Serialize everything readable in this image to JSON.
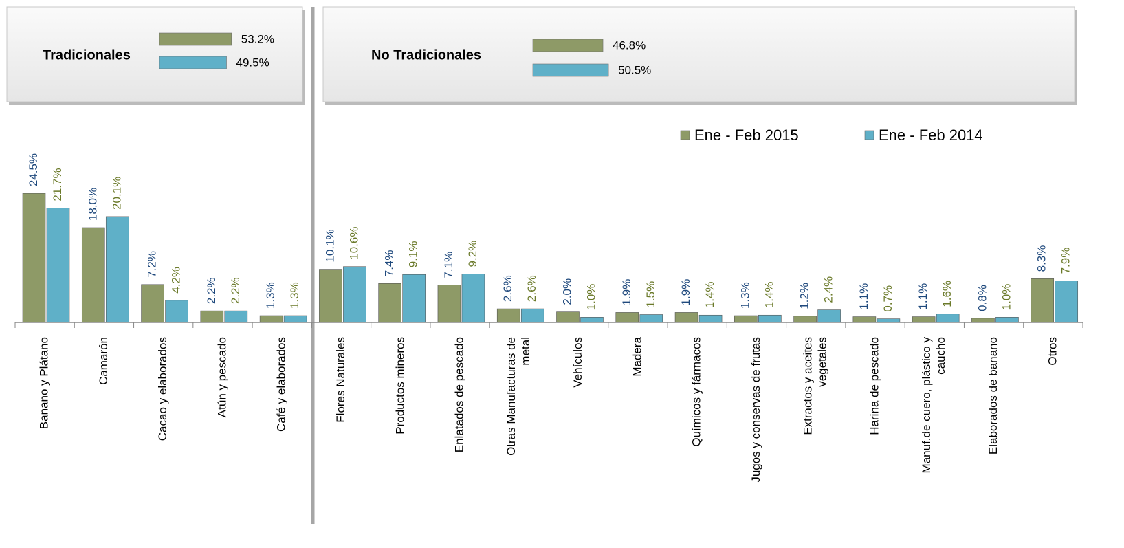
{
  "chart_data": [
    {
      "type": "bar",
      "orientation": "horizontal",
      "title": "Tradicionales",
      "values": [
        53.2,
        49.5
      ],
      "value_labels": [
        "53.2%",
        "49.5%"
      ],
      "colors": [
        "#8e9a67",
        "#5fb0c8"
      ],
      "xlim": [
        0,
        100
      ]
    },
    {
      "type": "bar",
      "orientation": "horizontal",
      "title": "No Tradicionales",
      "values": [
        46.8,
        50.5
      ],
      "value_labels": [
        "46.8%",
        "50.5%"
      ],
      "colors": [
        "#8e9a67",
        "#5fb0c8"
      ],
      "xlim": [
        0,
        100
      ]
    },
    {
      "type": "bar",
      "legend": "top-right",
      "ylim": [
        0,
        30
      ],
      "categories": [
        "Banano y Plátano",
        "Camarón",
        "Cacao y elaborados",
        "Atún y pescado",
        "Café y elaborados",
        "Flores Naturales",
        "Productos mineros",
        "Enlatados de pescado",
        "Otras Manufacturas de\nmetal",
        "Vehículos",
        "Madera",
        "Químicos y fármacos",
        "Jugos y conservas de frutas",
        "Extractos y aceites\nvegetales",
        "Harina de pescado",
        "Manuf.de cuero, plástico y\ncaucho",
        "Elaborados de banano",
        "Otros"
      ],
      "series": [
        {
          "name": "Ene - Feb  2015",
          "color": "#8e9a67",
          "label_color": "#1f497d",
          "values": [
            24.5,
            18.0,
            7.2,
            2.2,
            1.3,
            10.1,
            7.4,
            7.1,
            2.6,
            2.0,
            1.9,
            1.9,
            1.3,
            1.2,
            1.1,
            1.1,
            0.8,
            8.3
          ],
          "value_labels": [
            "24.5%",
            "18.0%",
            "7.2%",
            "2.2%",
            "1.3%",
            "10.1%",
            "7.4%",
            "7.1%",
            "2.6%",
            "2.0%",
            "1.9%",
            "1.9%",
            "1.3%",
            "1.2%",
            "1.1%",
            "1.1%",
            "0.8%",
            "8.3%"
          ]
        },
        {
          "name": "Ene - Feb  2014",
          "color": "#5fb0c8",
          "label_color": "#6b7a2a",
          "values": [
            21.7,
            20.1,
            4.2,
            2.2,
            1.3,
            10.6,
            9.1,
            9.2,
            2.6,
            1.0,
            1.5,
            1.4,
            1.4,
            2.4,
            0.7,
            1.6,
            1.0,
            7.9
          ],
          "value_labels": [
            "21.7%",
            "20.1%",
            "4.2%",
            "2.2%",
            "1.3%",
            "10.6%",
            "9.1%",
            "9.2%",
            "2.6%",
            "1.0%",
            "1.5%",
            "1.4%",
            "1.4%",
            "2.4%",
            "0.7%",
            "1.6%",
            "1.0%",
            "7.9%"
          ]
        }
      ]
    }
  ]
}
